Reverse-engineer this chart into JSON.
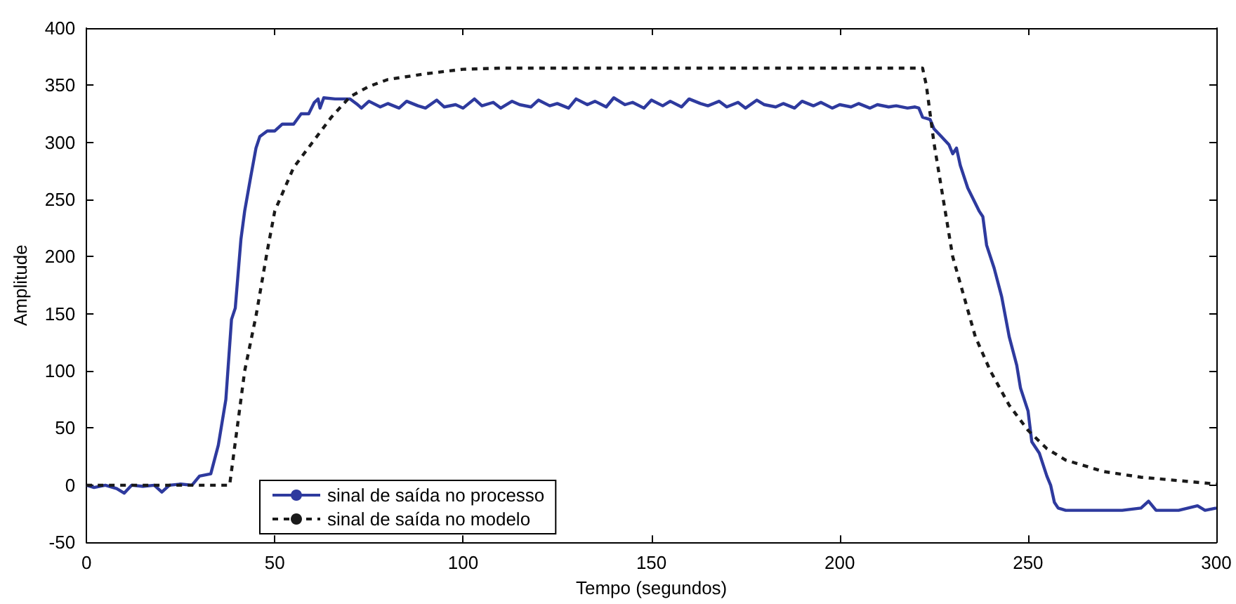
{
  "chart_data": {
    "type": "line",
    "xlabel": "Tempo (segundos)",
    "ylabel": "Amplitude",
    "xlim": [
      0,
      300
    ],
    "xticks": [
      0,
      50,
      100,
      150,
      200,
      250,
      300
    ],
    "ylim": [
      -50,
      400
    ],
    "yticks": [
      -50,
      0,
      50,
      100,
      150,
      200,
      250,
      300,
      350,
      400
    ],
    "grid": false,
    "legend": "bottom left",
    "marker": "none",
    "series": [
      {
        "name": "sinal de saída no processo",
        "color": "#2e3a9e",
        "line_style": "solid",
        "x": [
          0,
          2,
          5,
          8,
          10,
          12,
          15,
          18,
          20,
          22,
          25,
          28,
          30,
          33,
          35,
          37,
          38.5,
          39.5,
          41,
          42,
          43.5,
          45,
          46,
          48,
          50,
          52,
          55,
          57,
          59,
          60.5,
          61.5,
          62,
          63,
          66,
          70,
          72,
          73,
          75,
          78,
          80,
          83,
          85,
          88,
          90,
          93,
          95,
          98,
          100,
          103,
          105,
          108,
          110,
          113,
          115,
          118,
          120,
          123,
          125,
          128,
          130,
          133,
          135,
          138,
          140,
          143,
          145,
          148,
          150,
          153,
          155,
          158,
          160,
          163,
          165,
          168,
          170,
          173,
          175,
          178,
          180,
          183,
          185,
          188,
          190,
          193,
          195,
          198,
          200,
          203,
          205,
          208,
          210,
          213,
          215,
          218,
          220,
          221,
          222,
          224,
          225,
          227,
          229,
          230,
          231,
          232,
          234,
          237,
          238,
          239,
          241,
          243,
          245,
          247,
          248,
          250,
          251,
          253,
          255,
          256,
          257,
          258,
          260,
          265,
          270,
          275,
          280,
          282,
          284,
          290,
          295,
          297,
          300
        ],
        "values": [
          0,
          -2,
          0,
          -3,
          -7,
          0,
          -1,
          0,
          -6,
          0,
          1,
          0,
          8,
          10,
          35,
          75,
          145,
          155,
          215,
          240,
          268,
          295,
          305,
          310,
          310,
          316,
          316,
          325,
          325,
          335,
          338,
          330,
          339,
          338,
          338,
          333,
          330,
          336,
          331,
          334,
          330,
          336,
          332,
          330,
          337,
          331,
          333,
          330,
          338,
          332,
          335,
          330,
          336,
          333,
          331,
          337,
          332,
          334,
          330,
          338,
          333,
          336,
          331,
          339,
          333,
          335,
          330,
          337,
          332,
          336,
          331,
          338,
          334,
          332,
          336,
          331,
          335,
          330,
          337,
          333,
          331,
          334,
          330,
          336,
          332,
          335,
          330,
          333,
          331,
          334,
          330,
          333,
          331,
          332,
          330,
          331,
          330,
          322,
          320,
          312,
          305,
          298,
          290,
          295,
          280,
          260,
          240,
          235,
          210,
          190,
          165,
          130,
          105,
          85,
          65,
          38,
          28,
          8,
          0,
          -15,
          -20,
          -22,
          -22,
          -22,
          -22,
          -20,
          -14,
          -22,
          -22,
          -18,
          -22,
          -20
        ]
      },
      {
        "name": "sinal de saída no modelo",
        "color": "#1a1a1a",
        "line_style": "dashed",
        "x": [
          0,
          38,
          40,
          42,
          45,
          48,
          50,
          55,
          60,
          65,
          70,
          75,
          80,
          90,
          100,
          110,
          150,
          200,
          222,
          223,
          225,
          228,
          230,
          233,
          236,
          240,
          245,
          250,
          255,
          260,
          270,
          280,
          290,
          300
        ],
        "values": [
          0,
          0,
          50,
          100,
          148,
          205,
          240,
          278,
          300,
          322,
          340,
          349,
          355,
          360,
          364,
          365,
          365,
          365,
          365,
          350,
          300,
          240,
          200,
          165,
          130,
          100,
          70,
          48,
          32,
          22,
          12,
          7,
          4,
          1
        ]
      }
    ]
  }
}
